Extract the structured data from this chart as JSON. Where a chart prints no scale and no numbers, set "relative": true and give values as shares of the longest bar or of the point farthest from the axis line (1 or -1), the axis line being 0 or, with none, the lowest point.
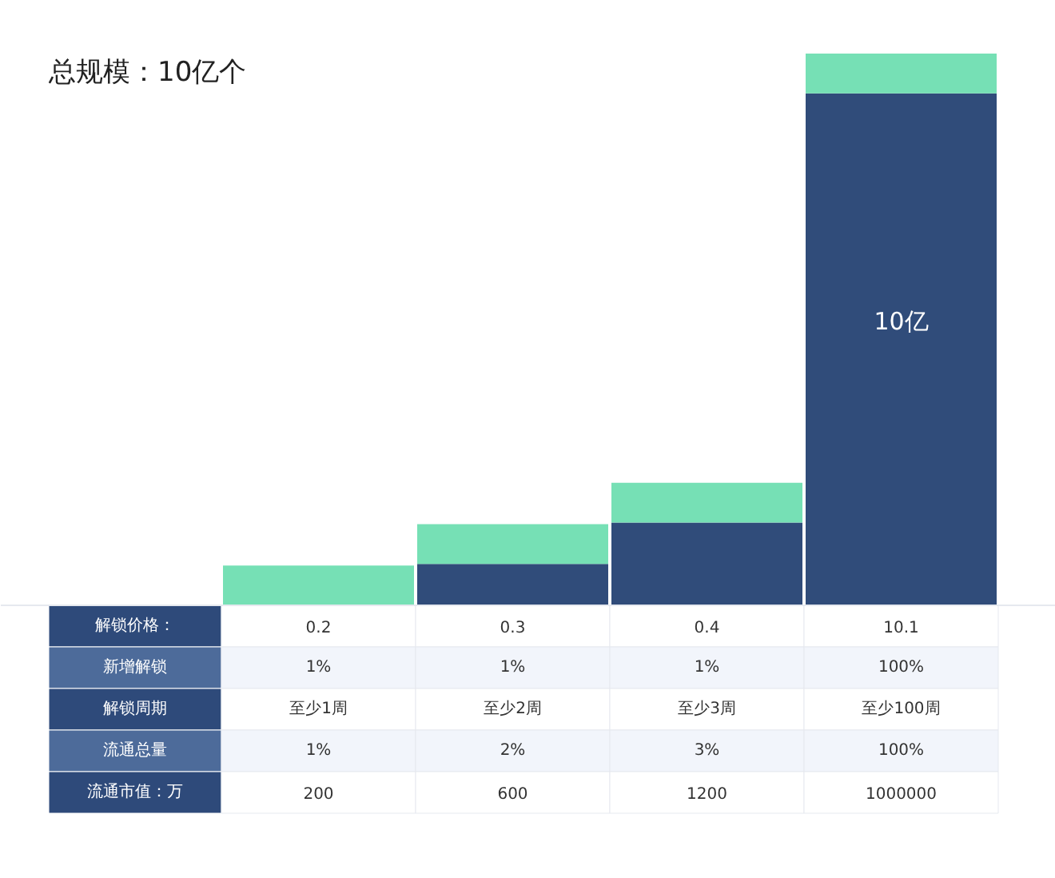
{
  "chart_data": {
    "type": "bar",
    "title": "总规模：10亿个",
    "stacked": true,
    "relative": true,
    "categories": [
      null,
      null,
      null,
      null
    ],
    "series": [
      {
        "color": "#304c7a",
        "values": [
          0,
          0.075,
          0.15,
          0.928
        ]
      },
      {
        "color": "#76e0b5",
        "values": [
          0.072,
          0.072,
          0.072,
          0.072
        ]
      }
    ],
    "annotations": [
      "10亿",
      "解锁价格：",
      "0.2",
      "0.3",
      "0.4",
      "10.1",
      "新增解锁",
      "1%",
      "1%",
      "1%",
      "100%",
      "解锁周期",
      "至少1周",
      "至少2周",
      "至少3周",
      "至少100周",
      "流通总量",
      "1%",
      "2%",
      "3%",
      "100%",
      "流通市值：万",
      "200",
      "600",
      "1200",
      "1000000"
    ]
  }
}
